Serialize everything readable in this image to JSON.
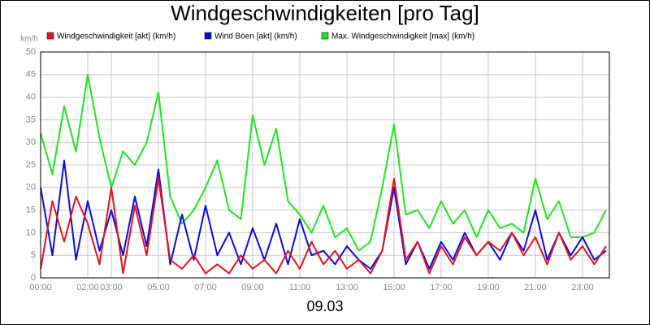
{
  "chart_data": {
    "type": "line",
    "title": "Windgeschwindigkeiten [pro Tag]",
    "y_label": "km/h",
    "x_label": "09.03",
    "x": [
      0,
      0.5,
      1,
      1.5,
      2,
      2.5,
      3,
      3.5,
      4,
      4.5,
      5,
      5.5,
      6,
      6.5,
      7,
      7.5,
      8,
      8.5,
      9,
      9.5,
      10,
      10.5,
      11,
      11.5,
      12,
      12.5,
      13,
      13.5,
      14,
      14.5,
      15,
      15.5,
      16,
      16.5,
      17,
      17.5,
      18,
      18.5,
      19,
      19.5,
      20,
      20.5,
      21,
      21.5,
      22,
      22.5,
      23,
      23.5,
      24
    ],
    "series": [
      {
        "name": "Windgeschwindigkeit [akt] (km/h)",
        "color": "#e8121a",
        "values": [
          2,
          17,
          8,
          18,
          12,
          3,
          20,
          1,
          16,
          5,
          22,
          4,
          2,
          5,
          1,
          3,
          1,
          5,
          2,
          4,
          1,
          6,
          2,
          8,
          3,
          6,
          2,
          4,
          1,
          6,
          22,
          4,
          8,
          1,
          7,
          3,
          9,
          5,
          8,
          6,
          10,
          5,
          9,
          3,
          10,
          4,
          7,
          3,
          7
        ]
      },
      {
        "name": "Wind Böen [akt] (km/h)",
        "color": "#0a0ae6",
        "values": [
          20,
          5,
          26,
          4,
          17,
          6,
          15,
          5,
          18,
          7,
          24,
          3,
          14,
          4,
          16,
          5,
          10,
          3,
          11,
          4,
          12,
          3,
          13,
          5,
          6,
          3,
          7,
          4,
          2,
          6,
          20,
          3,
          8,
          2,
          8,
          4,
          10,
          5,
          8,
          4,
          10,
          6,
          15,
          4,
          10,
          5,
          9,
          4,
          6
        ]
      },
      {
        "name": "Max. Windgeschwindigkeit [max] (km/h)",
        "color": "#1ee61e",
        "values": [
          32,
          23,
          38,
          28,
          45,
          31,
          20,
          28,
          25,
          30,
          41,
          18,
          12,
          15,
          20,
          26,
          15,
          13,
          36,
          25,
          33,
          17,
          14,
          10,
          16,
          9,
          11,
          6,
          8,
          20,
          34,
          14,
          15,
          11,
          17,
          12,
          15,
          9,
          15,
          11,
          12,
          10,
          22,
          13,
          17,
          9,
          9,
          10,
          15
        ]
      }
    ],
    "xlim": [
      0,
      24.14
    ],
    "xticks": [
      {
        "value": 0,
        "label": "00:00"
      },
      {
        "value": 2,
        "label": "02:00"
      },
      {
        "value": 3,
        "label": "03:00"
      },
      {
        "value": 5,
        "label": "05:00"
      },
      {
        "value": 7,
        "label": "07:00"
      },
      {
        "value": 9,
        "label": "09:00"
      },
      {
        "value": 11,
        "label": "11:00"
      },
      {
        "value": 13,
        "label": "13:00"
      },
      {
        "value": 15,
        "label": "15:00"
      },
      {
        "value": 17,
        "label": "17:00"
      },
      {
        "value": 19,
        "label": "19:00"
      },
      {
        "value": 21,
        "label": "21:00"
      },
      {
        "value": 23,
        "label": "23:00"
      }
    ],
    "ylim": [
      0,
      50
    ],
    "yticks": [
      0,
      5,
      10,
      15,
      20,
      25,
      30,
      35,
      40,
      45,
      50
    ],
    "grid": true
  }
}
